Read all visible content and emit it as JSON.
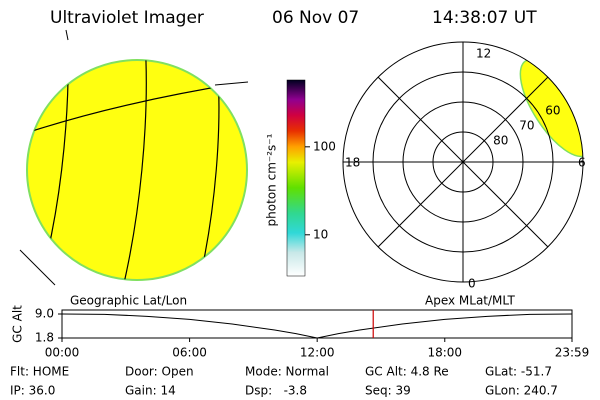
{
  "header": {
    "title": "Ultraviolet Imager",
    "date": "06 Nov 07",
    "time": "14:38:07 UT"
  },
  "colorbar": {
    "label": "photon cm⁻²s⁻¹",
    "log": true,
    "lim": [
      3.4,
      575
    ],
    "ticks": [
      10,
      100
    ]
  },
  "polar": {
    "lim": [
      50,
      90
    ],
    "rings": [
      80,
      70,
      60
    ],
    "mlt_labels": {
      "top": "12",
      "left": "18",
      "right": "6",
      "bottom": "0"
    }
  },
  "map_label_left": "Geographic Lat/Lon",
  "map_label_right": "Apex MLat/MLT",
  "chart_data": {
    "type": "line",
    "y_label": "GC Alt",
    "xlim": [
      0,
      23.983
    ],
    "xticks": [
      {
        "value": 0,
        "label": "00:00"
      },
      {
        "value": 6,
        "label": "06:00"
      },
      {
        "value": 12,
        "label": "12:00"
      },
      {
        "value": 18,
        "label": "18:00"
      },
      {
        "value": 23.983,
        "label": "23:59"
      }
    ],
    "ylim": [
      1.8,
      9.0
    ],
    "yticks": [
      {
        "value": 9.0,
        "label": "9.0"
      },
      1.8
    ],
    "x": [
      0,
      2,
      4,
      6,
      8,
      10,
      11,
      12,
      13,
      14,
      16,
      18,
      20,
      22,
      23.983
    ],
    "series": [
      {
        "name": "GC Alt",
        "color": "#000000",
        "values": [
          9.0,
          8.9,
          8.3,
          7.4,
          6.0,
          4.2,
          3.1,
          1.8,
          3.1,
          4.2,
          6.0,
          7.4,
          8.3,
          8.9,
          9.0
        ]
      }
    ],
    "marker_x": 14.635,
    "marker_color": "#cc0000"
  },
  "footer": {
    "rows": [
      [
        "Flt: HOME",
        "Door: Open",
        "Mode: Normal",
        "GC Alt: 4.8 Re",
        "GLat: -51.7"
      ],
      [
        "IP: 36.0",
        "Gain: 14",
        "Dsp:   -3.8",
        "Seq: 39",
        "GLon: 240.7"
      ]
    ]
  }
}
